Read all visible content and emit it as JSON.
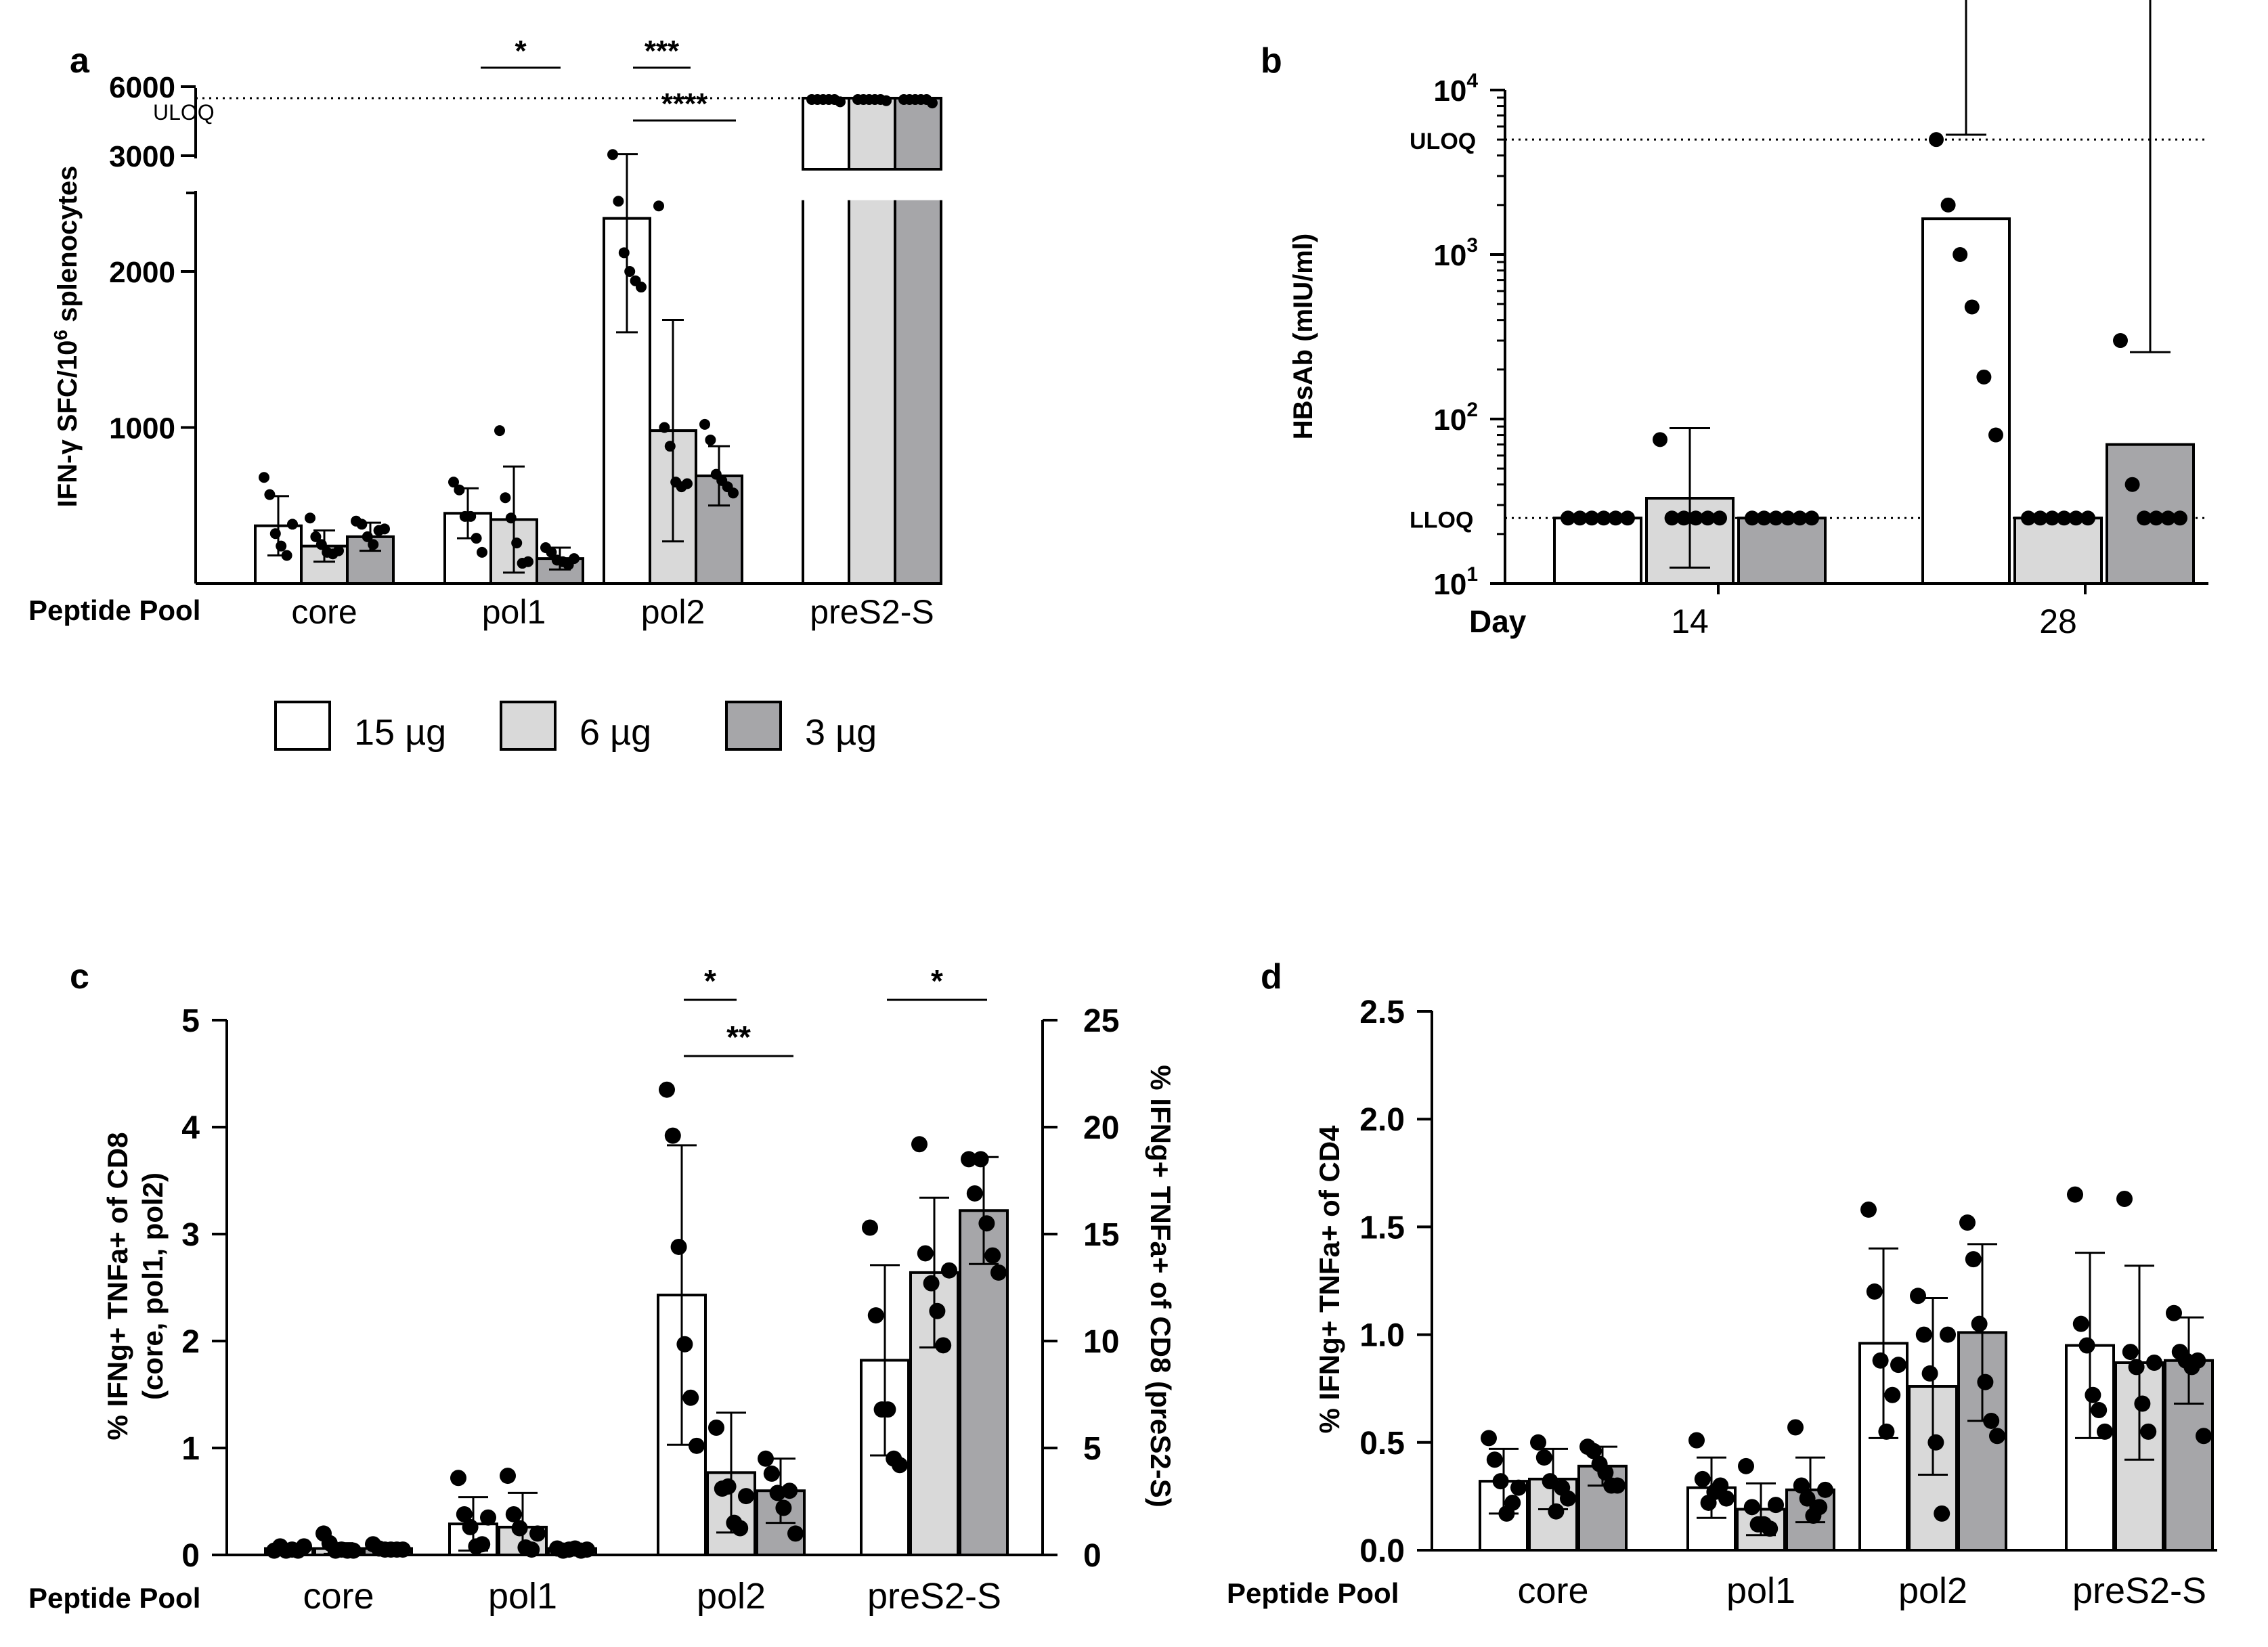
{
  "figure": {
    "legend": {
      "entries": [
        {
          "label": "15 µg",
          "color": "#ffffff"
        },
        {
          "label": "6 µg",
          "color": "#d9d9d9"
        },
        {
          "label": "3 µg",
          "color": "#a6a6a9"
        }
      ]
    },
    "peptide_pool_label": "Peptide Pool",
    "day_label": "Day"
  },
  "chart_data": [
    {
      "panel": "a",
      "type": "bar",
      "title": "",
      "ylabel": "IFN-γ SFC/10^6 splenocytes",
      "ylabel_parts": {
        "main": "IFN-γ SFC/10",
        "sup": "6",
        "tail": " splenocytes"
      },
      "categories": [
        "core",
        "pol1",
        "pol2",
        "preS2-S"
      ],
      "axis_break": {
        "lower_ylim": [
          0,
          2500
        ],
        "upper_ylim": [
          3000,
          6000
        ]
      },
      "yticks_lower": [
        "1000",
        "2000"
      ],
      "yticks_upper": [
        "3000",
        "6000"
      ],
      "uloq_label": "ULOQ",
      "uloq_value": 5500,
      "series": [
        {
          "name": "15 µg",
          "values": [
            370,
            450,
            2340,
            5500
          ],
          "errors": [
            190,
            160,
            730,
            0
          ],
          "points": [
            [
              680,
              570,
              320,
              240,
              180,
              380
            ],
            [
              650,
              600,
              430,
              430,
              290,
              200
            ],
            [
              3050,
              2450,
              2120,
              2000,
              1940,
              1900
            ],
            [
              5500,
              5500,
              5500,
              5500,
              5500,
              5400
            ]
          ]
        },
        {
          "name": "6 µg",
          "values": [
            240,
            410,
            980,
            5500
          ],
          "errors": [
            100,
            340,
            710,
            0
          ],
          "points": [
            [
              420,
              300,
              250,
              200,
              190,
              210
            ],
            [
              980,
              550,
              420,
              260,
              130,
              140
            ],
            [
              2420,
              1000,
              880,
              650,
              620,
              640
            ],
            [
              5500,
              5500,
              5500,
              5500,
              5500,
              5450
            ]
          ]
        },
        {
          "name": "3 µg",
          "values": [
            300,
            160,
            690,
            5500
          ],
          "errors": [
            90,
            70,
            190,
            0
          ],
          "points": [
            [
              400,
              380,
              300,
              250,
              340,
              350
            ],
            [
              230,
              200,
              150,
              140,
              120,
              160
            ],
            [
              1020,
              920,
              700,
              660,
              620,
              580
            ],
            [
              5500,
              5500,
              5500,
              5500,
              5500,
              5350
            ]
          ]
        }
      ],
      "significance": [
        {
          "label": "*",
          "category": "pol1",
          "from": "15 µg",
          "to": "3 µg"
        },
        {
          "label": "***",
          "category": "pol2",
          "from": "15 µg",
          "to": "6 µg"
        },
        {
          "label": "****",
          "category": "pol2",
          "from": "15 µg",
          "to": "3 µg"
        }
      ]
    },
    {
      "panel": "b",
      "type": "bar",
      "title": "",
      "ylabel": "HBsAb (mIU/ml)",
      "yscale": "log",
      "ylim": [
        10,
        10000
      ],
      "yticks": [
        {
          "base": "10",
          "exp": "1"
        },
        {
          "base": "10",
          "exp": "2"
        },
        {
          "base": "10",
          "exp": "3"
        },
        {
          "base": "10",
          "exp": "4"
        }
      ],
      "categories": [
        "14",
        "28"
      ],
      "uloq_label": "ULOQ",
      "uloq_value": 5000,
      "lloq_label": "LLOQ",
      "lloq_value": 25,
      "series": [
        {
          "name": "15 µg",
          "values": [
            25,
            1650
          ],
          "errors_upper": [
            0,
            3700
          ],
          "points": [
            [
              25,
              25,
              25,
              25,
              25,
              25
            ],
            [
              5000,
              2000,
              1000,
              480,
              180,
              80
            ]
          ]
        },
        {
          "name": "6 µg",
          "values": [
            33,
            25
          ],
          "errors_upper": [
            55,
            0
          ],
          "errors_lower": [
            12.5,
            0
          ],
          "points": [
            [
              75,
              25,
              25,
              25,
              25,
              25
            ],
            [
              25,
              25,
              25,
              25,
              25,
              25
            ]
          ]
        },
        {
          "name": "3 µg",
          "values": [
            25,
            70
          ],
          "errors_upper": [
            0,
            185
          ],
          "points": [
            [
              25,
              25,
              25,
              25,
              25,
              25
            ],
            [
              300,
              40,
              25,
              25,
              25,
              25
            ]
          ]
        }
      ]
    },
    {
      "panel": "c",
      "type": "bar",
      "title": "",
      "ylabel": "% IFNg+ TNFa+ of CD8",
      "ylabel_line2": "(core, pol1, pol2)",
      "ylabel_right": "% IFNg+ TNFa+ of CD8 (preS2-S)",
      "ylim": [
        0,
        5
      ],
      "ylim_right": [
        0,
        25
      ],
      "yticks": [
        "0",
        "1",
        "2",
        "3",
        "4",
        "5"
      ],
      "yticks_right": [
        "0",
        "5",
        "10",
        "15",
        "20",
        "25"
      ],
      "categories": [
        "core",
        "pol1",
        "pol2",
        "preS2-S"
      ],
      "series": [
        {
          "name": "15 µg",
          "values": [
            0.06,
            0.29,
            2.43,
            9.1
          ],
          "errors": [
            0.04,
            0.25,
            1.4,
            4.45
          ],
          "points": [
            [
              0.04,
              0.08,
              0.04,
              0.05,
              0.04,
              0.08
            ],
            [
              0.72,
              0.38,
              0.26,
              0.08,
              0.1,
              0.35
            ],
            [
              4.35,
              3.92,
              2.88,
              1.97,
              1.47,
              1.02
            ],
            [
              15.3,
              11.2,
              6.8,
              6.8,
              4.5,
              4.2
            ]
          ]
        },
        {
          "name": "6 µg",
          "values": [
            0.06,
            0.26,
            0.77,
            13.2
          ],
          "errors": [
            0.05,
            0.32,
            0.56,
            3.5
          ],
          "points": [
            [
              0.2,
              0.11,
              0.04,
              0.05,
              0.04,
              0.04
            ],
            [
              0.74,
              0.38,
              0.25,
              0.07,
              0.05,
              0.2
            ],
            [
              1.19,
              0.62,
              0.64,
              0.3,
              0.25,
              0.55
            ],
            [
              19.2,
              14.1,
              12.7,
              11.4,
              9.8,
              13.3
            ]
          ]
        },
        {
          "name": "3 µg",
          "values": [
            0.06,
            0.06,
            0.6,
            16.1
          ],
          "errors": [
            0.04,
            0.03,
            0.3,
            2.5
          ],
          "points": [
            [
              0.1,
              0.06,
              0.05,
              0.05,
              0.05,
              0.05
            ],
            [
              0.06,
              0.04,
              0.05,
              0.06,
              0.04,
              0.05
            ],
            [
              0.9,
              0.76,
              0.58,
              0.44,
              0.6,
              0.2
            ],
            [
              18.5,
              16.9,
              18.5,
              15.5,
              14.0,
              13.2
            ]
          ]
        }
      ],
      "significance": [
        {
          "label": "*",
          "category": "pol2",
          "from": "15 µg",
          "to": "6 µg"
        },
        {
          "label": "**",
          "category": "pol2",
          "from": "15 µg",
          "to": "3 µg"
        },
        {
          "label": "*",
          "category": "preS2-S",
          "from": "15 µg",
          "to": "3 µg"
        }
      ]
    },
    {
      "panel": "d",
      "type": "bar",
      "title": "",
      "ylabel": "% IFNg+ TNFa+ of CD4",
      "ylim": [
        0,
        2.5
      ],
      "yticks": [
        "0.0",
        "0.5",
        "1.0",
        "1.5",
        "2.0",
        "2.5"
      ],
      "categories": [
        "core",
        "pol1",
        "pol2",
        "preS2-S"
      ],
      "series": [
        {
          "name": "15 µg",
          "values": [
            0.32,
            0.29,
            0.96,
            0.95
          ],
          "errors": [
            0.15,
            0.14,
            0.44,
            0.43
          ],
          "points": [
            [
              0.52,
              0.42,
              0.32,
              0.17,
              0.22,
              0.29
            ],
            [
              0.51,
              0.33,
              0.22,
              0.27,
              0.3,
              0.24
            ],
            [
              1.58,
              1.2,
              0.88,
              0.55,
              0.72,
              0.86
            ],
            [
              1.65,
              1.05,
              0.95,
              0.72,
              0.65,
              0.55
            ]
          ]
        },
        {
          "name": "6 µg",
          "values": [
            0.33,
            0.19,
            0.76,
            0.87
          ],
          "errors": [
            0.14,
            0.12,
            0.41,
            0.45
          ],
          "points": [
            [
              0.5,
              0.43,
              0.32,
              0.18,
              0.29,
              0.24
            ],
            [
              0.39,
              0.2,
              0.12,
              0.12,
              0.1,
              0.21
            ],
            [
              1.18,
              1.0,
              0.82,
              0.5,
              0.17,
              1.0
            ],
            [
              1.63,
              0.92,
              0.85,
              0.68,
              0.55,
              0.87
            ]
          ]
        },
        {
          "name": "3 µg",
          "values": [
            0.39,
            0.28,
            1.01,
            0.88
          ],
          "errors": [
            0.09,
            0.15,
            0.41,
            0.2
          ],
          "points": [
            [
              0.48,
              0.46,
              0.4,
              0.36,
              0.3,
              0.3
            ],
            [
              0.57,
              0.3,
              0.24,
              0.16,
              0.2,
              0.28
            ],
            [
              1.52,
              1.35,
              1.05,
              0.78,
              0.6,
              0.53
            ],
            [
              1.1,
              0.92,
              0.88,
              0.85,
              0.88,
              0.53
            ]
          ]
        }
      ]
    }
  ]
}
